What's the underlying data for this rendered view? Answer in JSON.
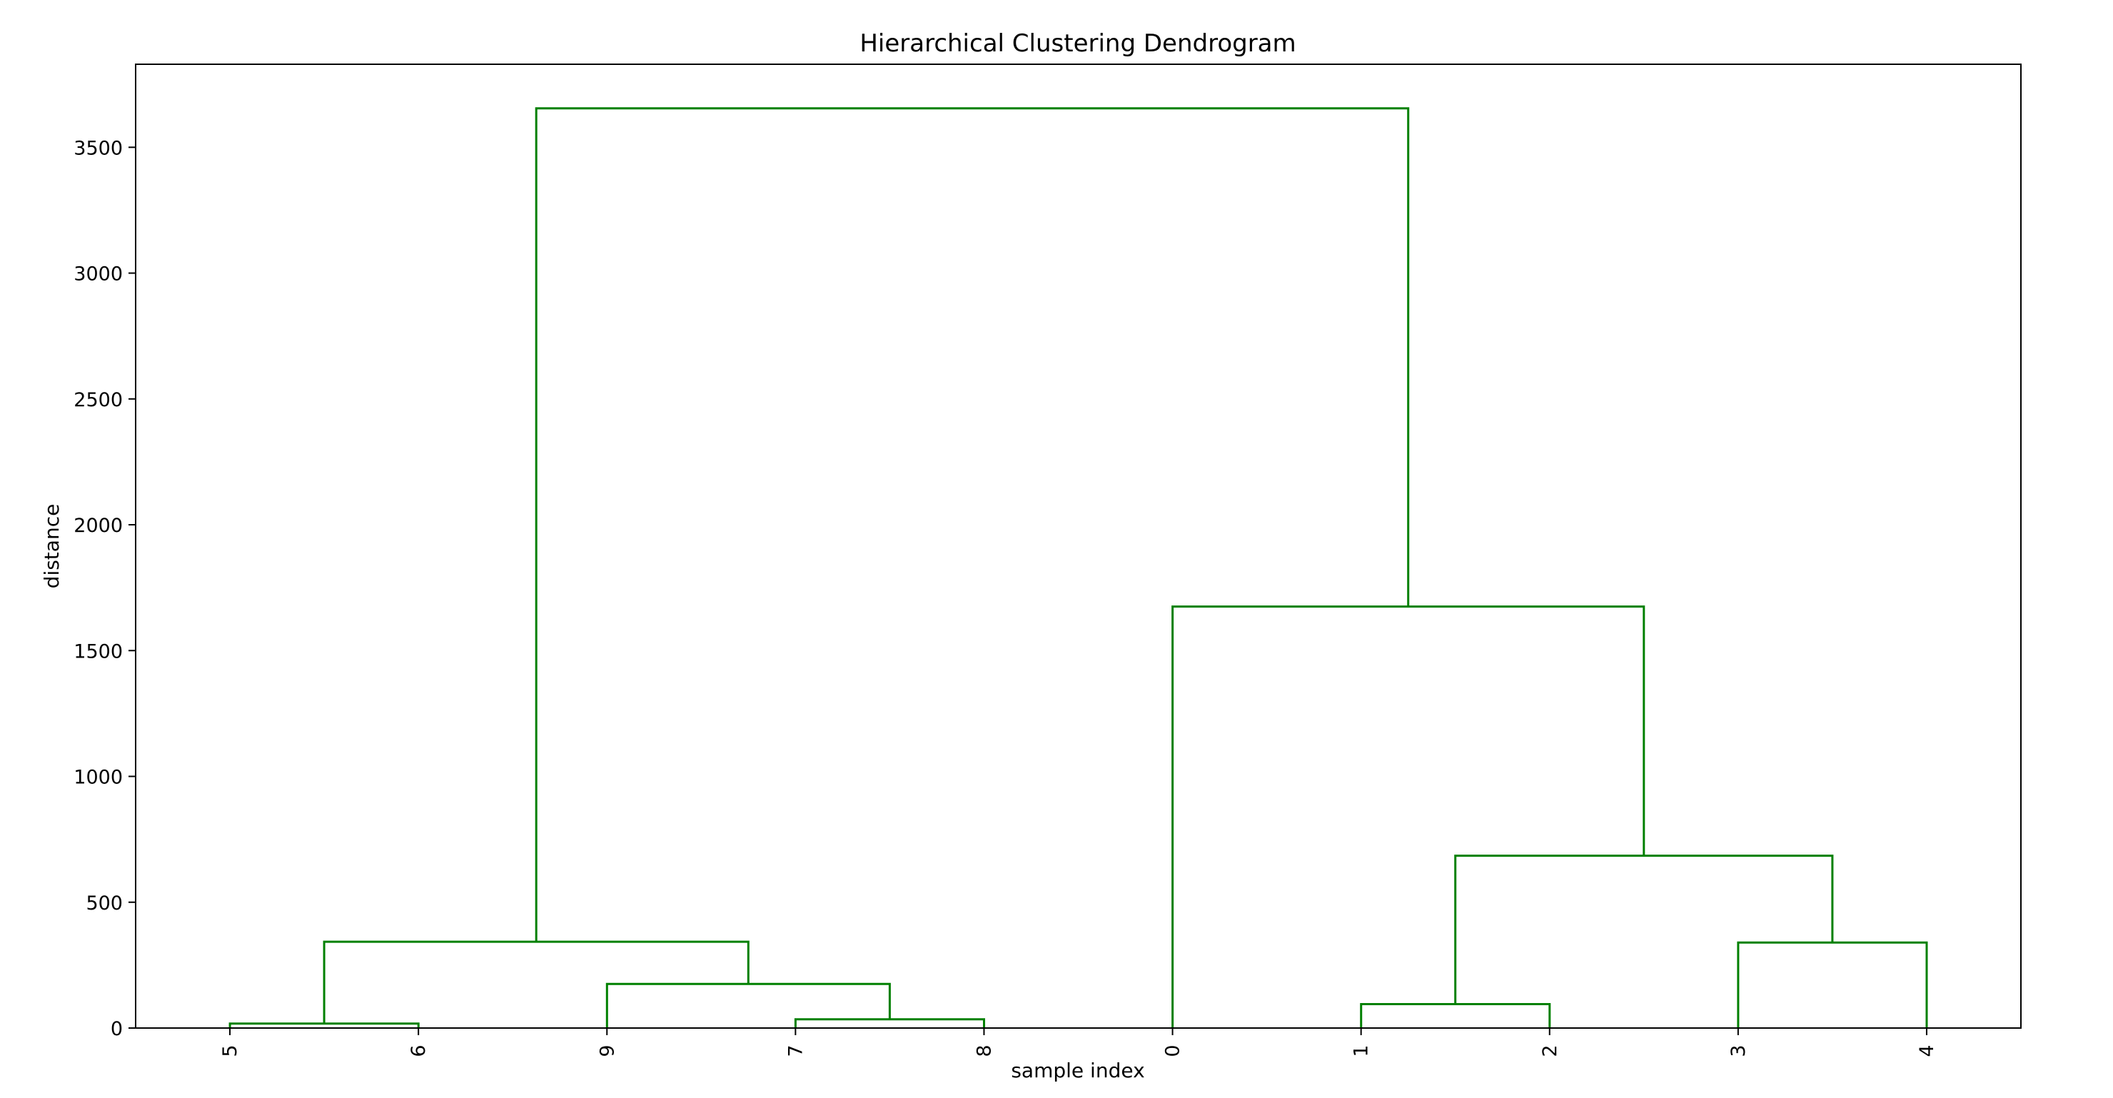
{
  "chart_data": {
    "type": "dendrogram",
    "title": "Hierarchical Clustering Dendrogram",
    "xlabel": "sample index",
    "ylabel": "distance",
    "ylim": [
      0,
      3830
    ],
    "yticks": [
      0,
      500,
      1000,
      1500,
      2000,
      2500,
      3000,
      3500
    ],
    "leaf_order": [
      "5",
      "6",
      "9",
      "7",
      "8",
      "0",
      "1",
      "2",
      "3",
      "4"
    ],
    "merges": [
      {
        "left": "5",
        "right": "6",
        "distance": 18
      },
      {
        "left": "7",
        "right": "8",
        "distance": 35
      },
      {
        "left": "1",
        "right": "2",
        "distance": 95
      },
      {
        "left": "9",
        "right": "(7, 8)",
        "distance": 175
      },
      {
        "left": "3",
        "right": "4",
        "distance": 340
      },
      {
        "left": "(5, 6)",
        "right": "(9, 7, 8)",
        "distance": 343
      },
      {
        "left": "(1, 2)",
        "right": "(3, 4)",
        "distance": 685
      },
      {
        "left": "0",
        "right": "(1, 2, 3, 4)",
        "distance": 1675
      },
      {
        "left": "(5, 6, 9, 7, 8)",
        "right": "(0, 1, 2, 3, 4)",
        "distance": 3655
      }
    ],
    "links": [
      {
        "x": [
          1,
          1,
          2,
          2
        ],
        "y": [
          0,
          18,
          18,
          0
        ]
      },
      {
        "x": [
          4,
          4,
          5,
          5
        ],
        "y": [
          0,
          35,
          35,
          0
        ]
      },
      {
        "x": [
          3,
          3,
          4.5,
          4.5
        ],
        "y": [
          0,
          175,
          175,
          35
        ]
      },
      {
        "x": [
          1.5,
          1.5,
          3.75,
          3.75
        ],
        "y": [
          18,
          343,
          343,
          175
        ]
      },
      {
        "x": [
          7,
          7,
          8,
          8
        ],
        "y": [
          0,
          95,
          95,
          0
        ]
      },
      {
        "x": [
          9,
          9,
          10,
          10
        ],
        "y": [
          0,
          340,
          340,
          0
        ]
      },
      {
        "x": [
          7.5,
          7.5,
          9.5,
          9.5
        ],
        "y": [
          95,
          685,
          685,
          340
        ]
      },
      {
        "x": [
          6,
          6,
          8.5,
          8.5
        ],
        "y": [
          0,
          1675,
          1675,
          685
        ]
      },
      {
        "x": [
          2.625,
          2.625,
          7.25,
          7.25
        ],
        "y": [
          343,
          3655,
          3655,
          1675
        ]
      }
    ],
    "link_color": "#008000",
    "grid": false,
    "legend": "none"
  }
}
